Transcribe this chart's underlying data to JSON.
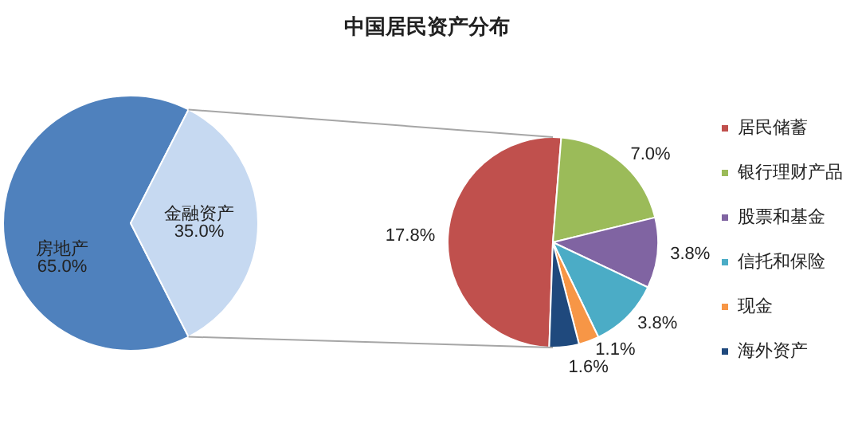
{
  "chart_data": [
    {
      "type": "pie",
      "title": "中国居民资产分布",
      "categories": [
        "房地产",
        "金融资产"
      ],
      "values": [
        65.0,
        35.0
      ],
      "colors": [
        "#4f81bd",
        "#c6d9f1"
      ],
      "value_labels": [
        "65.0%",
        "35.0%"
      ],
      "legend": false
    },
    {
      "type": "pie",
      "categories": [
        "居民储蓄",
        "银行理财产品",
        "股票和基金",
        "信托和保险",
        "现金",
        "海外资产"
      ],
      "values": [
        17.8,
        7.0,
        3.8,
        3.8,
        1.1,
        1.6
      ],
      "colors": [
        "#c0504d",
        "#9bbb59",
        "#8064a2",
        "#4bacc6",
        "#f79646",
        "#1f497d"
      ],
      "value_labels": [
        "17.8%",
        "7.0%",
        "3.8%",
        "3.8%",
        "1.1%",
        "1.6%"
      ],
      "legend": "right"
    }
  ]
}
